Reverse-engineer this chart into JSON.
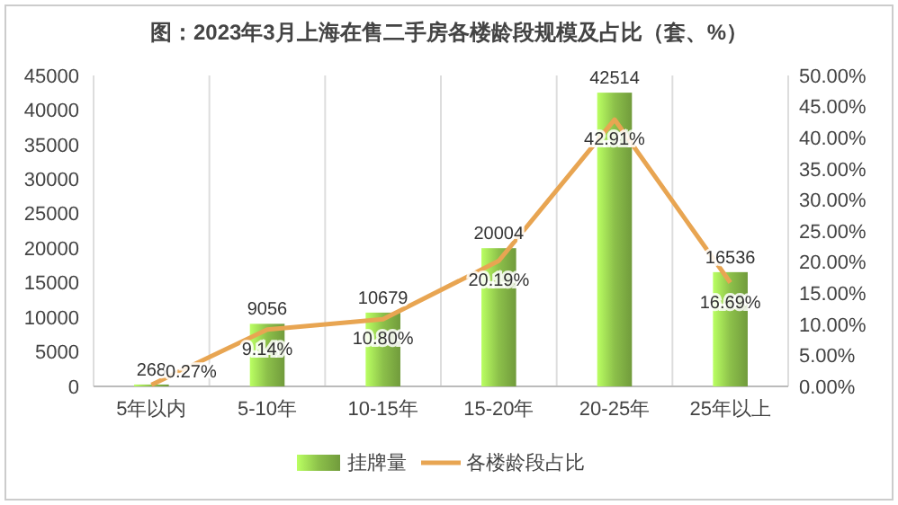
{
  "chart_data": {
    "type": "bar",
    "title": "图：2023年3月上海在售二手房各楼龄段规模及占比（套、%）",
    "categories": [
      "5年以内",
      "5-10年",
      "10-15年",
      "15-20年",
      "20-25年",
      "25年以上"
    ],
    "series": [
      {
        "name": "挂牌量",
        "color": "#8cc04a",
        "values": [
          268,
          9056,
          10679,
          20004,
          42514,
          16536
        ],
        "value_labels": [
          "268",
          "9056",
          "10679",
          "20004",
          "42514",
          "16536"
        ]
      },
      {
        "name": "各楼龄段占比",
        "type": "line",
        "axis": "y2",
        "color": "#e8a552",
        "values": [
          0.27,
          9.14,
          10.8,
          20.19,
          42.91,
          16.69
        ],
        "value_labels": [
          "0.27%",
          "9.14%",
          "10.80%",
          "20.19%",
          "42.91%",
          "16.69%"
        ]
      }
    ],
    "ylim": [
      0,
      45000
    ],
    "yticks": [
      0,
      5000,
      10000,
      15000,
      20000,
      25000,
      30000,
      35000,
      40000,
      45000
    ],
    "y2lim": [
      0,
      50
    ],
    "y2ticks": [
      {
        "value": 0,
        "label": "0.00%"
      },
      {
        "value": 5,
        "label": "5.00%"
      },
      {
        "value": 10,
        "label": "10.00%"
      },
      {
        "value": 15,
        "label": "15.00%"
      },
      {
        "value": 20,
        "label": "20.00%"
      },
      {
        "value": 25,
        "label": "25.00%"
      },
      {
        "value": 30,
        "label": "30.00%"
      },
      {
        "value": 35,
        "label": "35.00%"
      },
      {
        "value": 40,
        "label": "40.00%"
      },
      {
        "value": 45,
        "label": "45.00%"
      },
      {
        "value": 50,
        "label": "50.00%"
      }
    ],
    "grid": "x",
    "legend": "bottom",
    "marker": "none",
    "line_style": "solid"
  }
}
